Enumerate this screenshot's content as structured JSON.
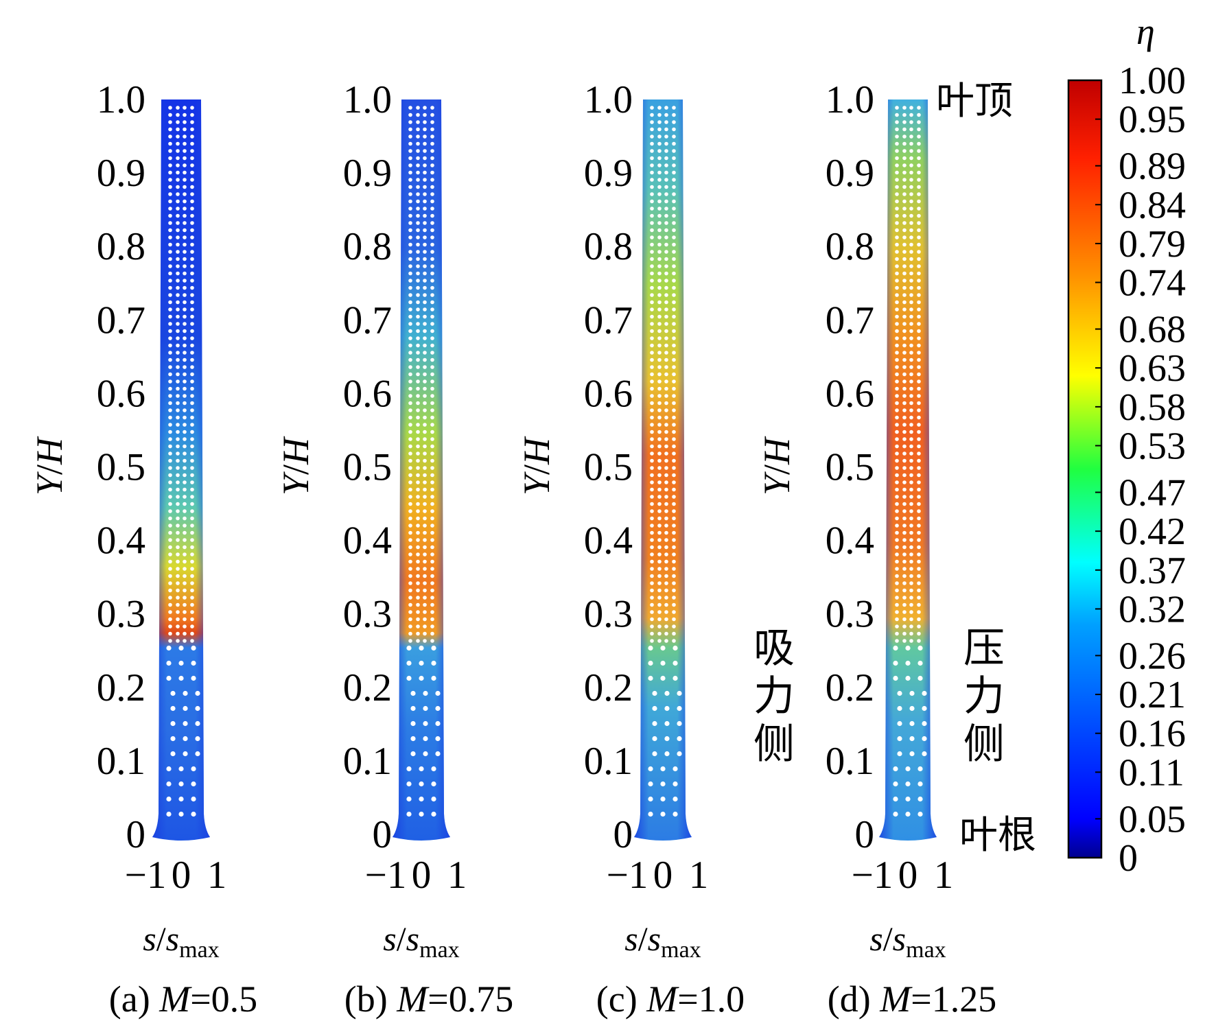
{
  "chart_data": [
    {
      "type": "contour",
      "caption": [
        "(a) ",
        "M",
        "=0.5"
      ],
      "ylabel": [
        "Y",
        "/",
        "H"
      ],
      "xlabel": [
        "s",
        "/",
        "s",
        "max"
      ],
      "ylim": [
        0,
        1
      ],
      "yticks": [
        0,
        0.1,
        0.2,
        0.3,
        0.4,
        0.5,
        0.6,
        0.7,
        0.8,
        0.9,
        {
          "value": 1,
          "label": "1.0"
        }
      ],
      "xlim": [
        -1,
        1
      ],
      "xticks": [
        {
          "value": -1,
          "label": "−1"
        },
        0,
        1
      ]
    },
    {
      "type": "contour",
      "caption": [
        "(b) ",
        "M",
        "=0.75"
      ],
      "ylabel": [
        "Y",
        "/",
        "H"
      ],
      "xlabel": [
        "s",
        "/",
        "s",
        "max"
      ],
      "ylim": [
        0,
        1
      ],
      "yticks": [
        0,
        0.1,
        0.2,
        0.3,
        0.4,
        0.5,
        0.6,
        0.7,
        0.8,
        0.9,
        {
          "value": 1,
          "label": "1.0"
        }
      ],
      "xlim": [
        -1,
        1
      ],
      "xticks": [
        {
          "value": -1,
          "label": "−1"
        },
        0,
        1
      ]
    },
    {
      "type": "contour",
      "caption": [
        "(c) ",
        "M",
        "=1.0"
      ],
      "ylabel": [
        "Y",
        "/",
        "H"
      ],
      "xlabel": [
        "s",
        "/",
        "s",
        "max"
      ],
      "ylim": [
        0,
        1
      ],
      "yticks": [
        0,
        0.1,
        0.2,
        0.3,
        0.4,
        0.5,
        0.6,
        0.7,
        0.8,
        0.9,
        {
          "value": 1,
          "label": "1.0"
        }
      ],
      "xlim": [
        -1,
        1
      ],
      "xticks": [
        {
          "value": -1,
          "label": "−1"
        },
        0,
        1
      ]
    },
    {
      "type": "contour",
      "caption": [
        "(d) ",
        "M",
        "=1.25"
      ],
      "ylabel": [
        "Y",
        "/",
        "H"
      ],
      "xlabel": [
        "s",
        "/",
        "s",
        "max"
      ],
      "ylim": [
        0,
        1
      ],
      "yticks": [
        0,
        0.1,
        0.2,
        0.3,
        0.4,
        0.5,
        0.6,
        0.7,
        0.8,
        0.9,
        {
          "value": 1,
          "label": "1.0"
        }
      ],
      "xlim": [
        -1,
        1
      ],
      "xticks": [
        {
          "value": -1,
          "label": "−1"
        },
        0,
        1
      ]
    }
  ],
  "colorbar": {
    "title": "η",
    "lim": [
      0,
      1
    ],
    "ticks": [
      0,
      0.05,
      0.11,
      0.16,
      0.21,
      0.26,
      0.32,
      0.37,
      0.42,
      0.47,
      0.53,
      0.58,
      0.63,
      0.68,
      0.74,
      0.79,
      0.84,
      0.89,
      0.95,
      {
        "value": 1,
        "label": "1.00"
      }
    ]
  },
  "annotations": {
    "tip": "叶顶",
    "root": "叶根",
    "suction_side": "吸力侧",
    "pressure_side": "压力侧"
  }
}
